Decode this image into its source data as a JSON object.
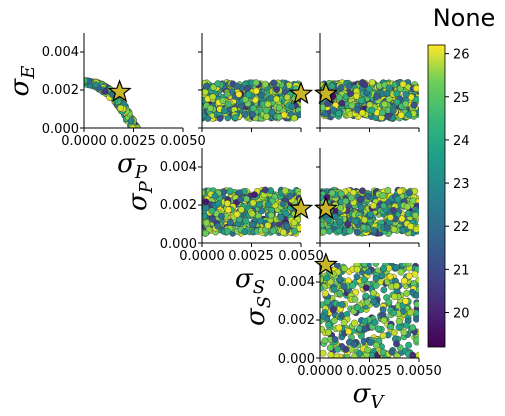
{
  "chart_data": {
    "type": "scatter",
    "layout": "corner-plot",
    "title": "None",
    "variables": [
      "σ_E",
      "σ_P",
      "σ_S",
      "σ_V"
    ],
    "axis_labels": {
      "sigma_E": {
        "base": "σ",
        "sub": "E"
      },
      "sigma_P": {
        "base": "σ",
        "sub": "P"
      },
      "sigma_S": {
        "base": "σ",
        "sub": "S"
      },
      "sigma_V": {
        "base": "σ",
        "sub": "V"
      }
    },
    "axis_range": [
      0.0,
      0.005
    ],
    "x_ticks": [
      "0.0000",
      "0.0025",
      "0.0050"
    ],
    "y_ticks": [
      "0.000",
      "0.002",
      "0.004"
    ],
    "x_tick_values": [
      0.0,
      0.0025,
      0.005
    ],
    "y_tick_values": [
      0.0,
      0.002,
      0.004
    ],
    "marker_true_value": "star",
    "colorbar": {
      "range": [
        19.2,
        26.2
      ],
      "ticks": [
        "20",
        "21",
        "22",
        "23",
        "24",
        "25",
        "26"
      ],
      "tick_values": [
        20,
        21,
        22,
        23,
        24,
        25,
        26
      ],
      "colormap": "viridis"
    },
    "panels": [
      {
        "id": "P_vs_E",
        "x": "σ_P",
        "y": "σ_E",
        "shape": "curved-band",
        "star": [
          0.0018,
          0.0019
        ],
        "points": 240
      },
      {
        "id": "S_vs_E",
        "x": "σ_S",
        "y": "σ_E",
        "shape": "horizontal-band",
        "y_band": [
          0.0005,
          0.0024
        ],
        "star": [
          0.005,
          0.0018
        ],
        "points": 520
      },
      {
        "id": "V_vs_E",
        "x": "σ_V",
        "y": "σ_E",
        "shape": "horizontal-band",
        "y_band": [
          0.0005,
          0.0024
        ],
        "star": [
          0.0003,
          0.0018
        ],
        "points": 520
      },
      {
        "id": "S_vs_P",
        "x": "σ_S",
        "y": "σ_P",
        "shape": "horizontal-band",
        "y_band": [
          0.0005,
          0.0028
        ],
        "star": [
          0.005,
          0.0018
        ],
        "points": 520
      },
      {
        "id": "V_vs_P",
        "x": "σ_V",
        "y": "σ_P",
        "shape": "horizontal-band",
        "y_band": [
          0.0005,
          0.0028
        ],
        "star": [
          0.0003,
          0.0018
        ],
        "points": 520
      },
      {
        "id": "V_vs_S",
        "x": "σ_V",
        "y": "σ_S",
        "shape": "filled-square",
        "y_band": [
          0.0,
          0.005
        ],
        "star": [
          0.0003,
          0.0049
        ],
        "points": 420
      }
    ]
  }
}
